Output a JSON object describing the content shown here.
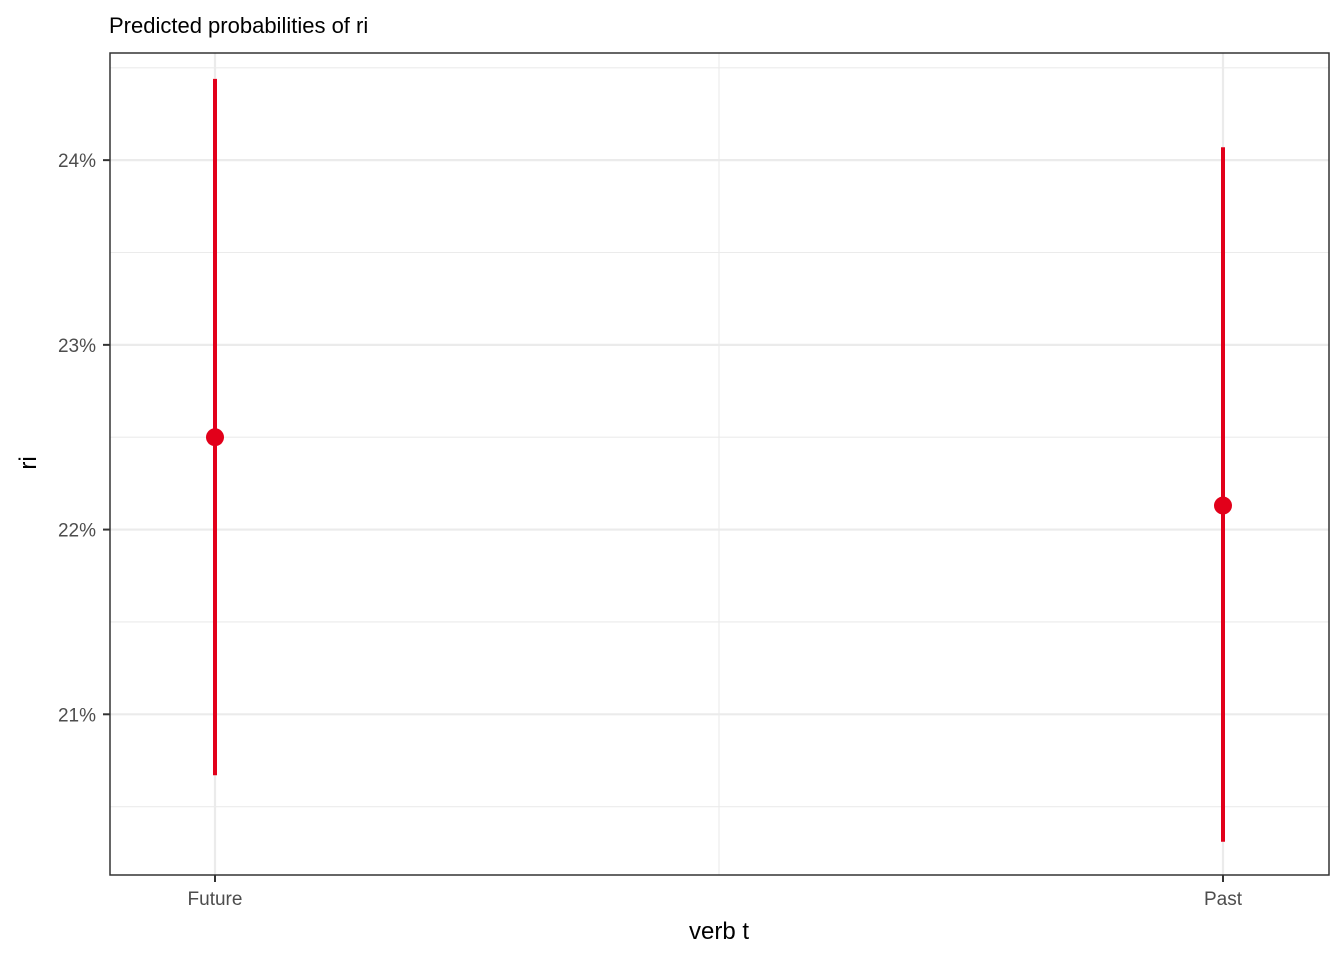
{
  "chart_data": {
    "type": "pointrange",
    "title": "Predicted probabilities of ri",
    "xlabel": "verb t",
    "ylabel": "ri",
    "categories": [
      "Future",
      "Past"
    ],
    "series": [
      {
        "values": [
          22.5,
          22.13
        ],
        "lower": [
          20.67,
          20.31
        ],
        "upper": [
          24.44,
          24.07
        ]
      }
    ],
    "yticks": [
      21,
      22,
      23,
      24
    ],
    "ytick_labels": [
      "21%",
      "22%",
      "23%",
      "24%"
    ],
    "ylim": [
      20.13,
      24.58
    ],
    "grid": true,
    "legend": "none",
    "colors": {
      "series": "#e2001a",
      "grid": "#ebebeb",
      "panel_border": "#333333",
      "tick": "#333333"
    }
  }
}
